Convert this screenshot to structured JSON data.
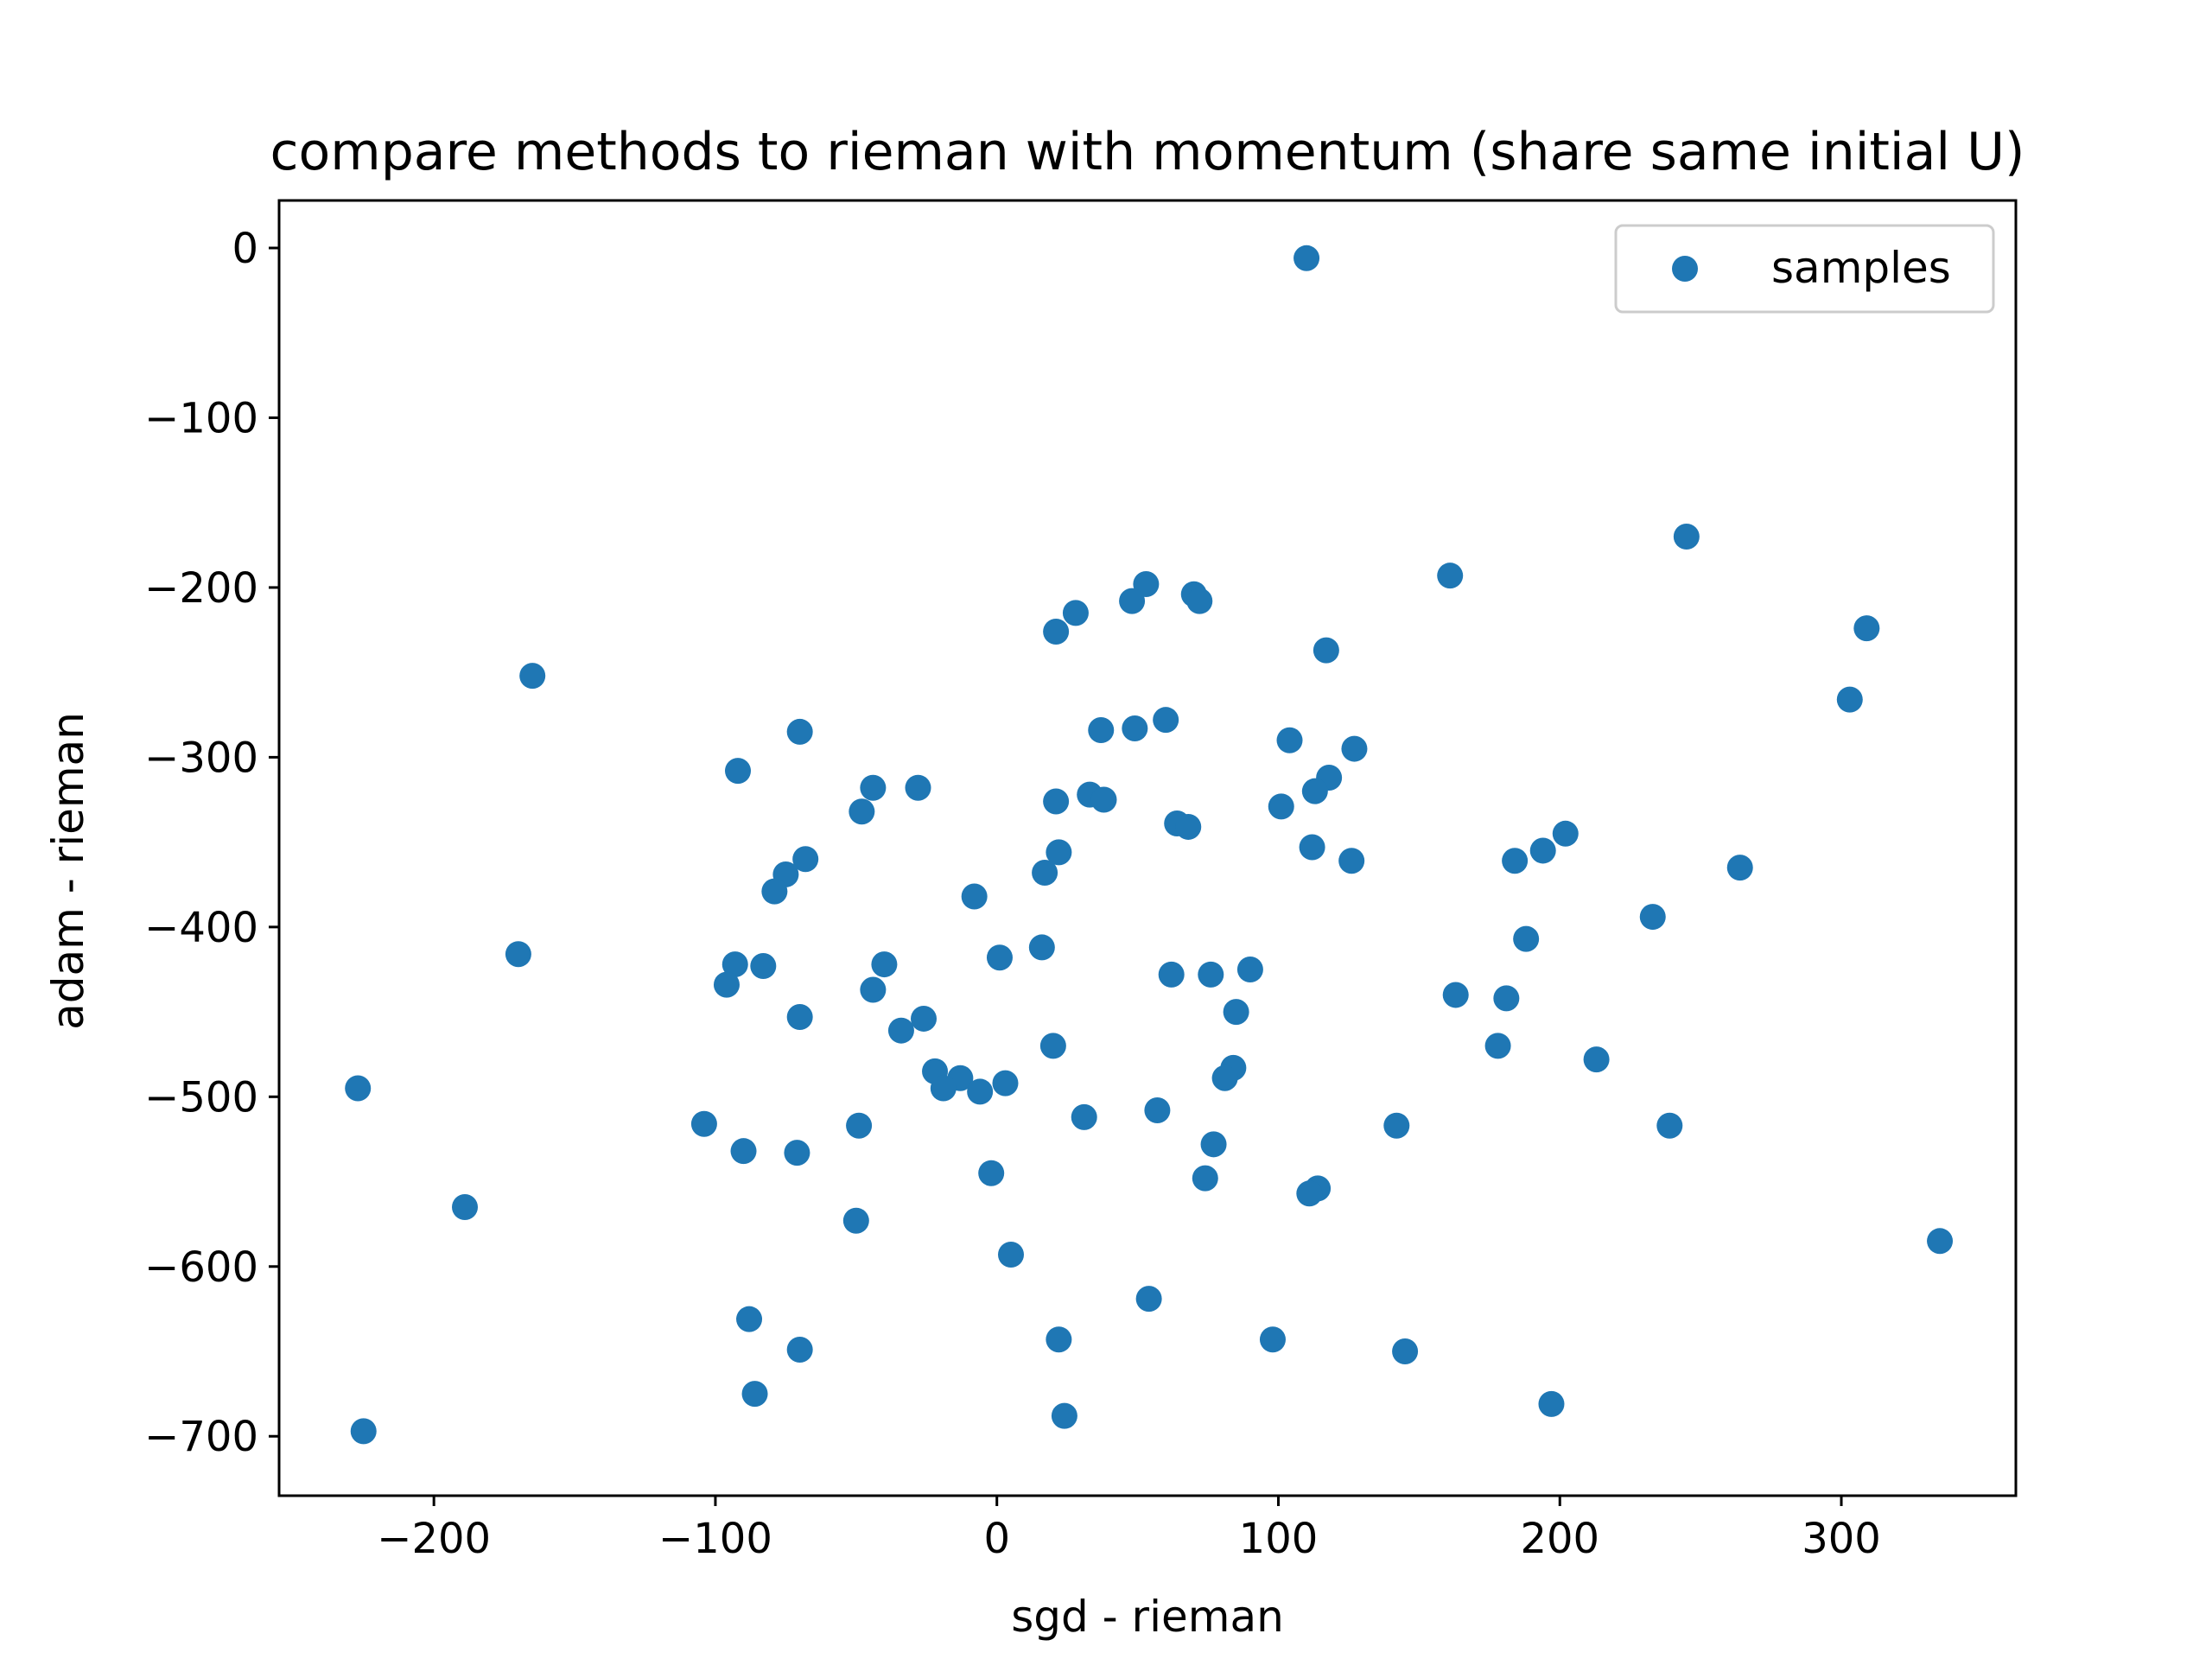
{
  "chart_data": {
    "type": "scatter",
    "title": "compare methods to rieman with momentum (share same initial U)",
    "xlabel": "sgd - rieman",
    "ylabel": "adam - rieman",
    "xlim": [
      -255,
      362
    ],
    "ylim": [
      -735,
      28
    ],
    "xticks": [
      -200,
      -100,
      0,
      100,
      200,
      300
    ],
    "yticks": [
      0,
      -100,
      -200,
      -300,
      -400,
      -500,
      -600,
      -700
    ],
    "xtick_labels": [
      "−200",
      "−100",
      "0",
      "100",
      "200",
      "300"
    ],
    "ytick_labels": [
      "0",
      "−100",
      "−200",
      "−300",
      "−400",
      "−500",
      "−600",
      "−700"
    ],
    "grid": false,
    "legend_position": "top-right",
    "color": "#1f77b4",
    "series": [
      {
        "name": "samples",
        "points": [
          [
            110,
            -6
          ],
          [
            245,
            -170
          ],
          [
            161,
            -193
          ],
          [
            309,
            -224
          ],
          [
            303,
            -266
          ],
          [
            -165,
            -252
          ],
          [
            53,
            -198
          ],
          [
            70,
            -204
          ],
          [
            72,
            -208
          ],
          [
            48,
            -208
          ],
          [
            28,
            -215
          ],
          [
            21,
            -226
          ],
          [
            117,
            -237
          ],
          [
            -70,
            -285
          ],
          [
            37,
            -284
          ],
          [
            49,
            -283
          ],
          [
            60,
            -278
          ],
          [
            104,
            -290
          ],
          [
            127,
            -295
          ],
          [
            -92,
            -308
          ],
          [
            -44,
            -318
          ],
          [
            -28,
            -318
          ],
          [
            33,
            -322
          ],
          [
            38,
            -325
          ],
          [
            21,
            -326
          ],
          [
            -48,
            -332
          ],
          [
            118,
            -312
          ],
          [
            113,
            -320
          ],
          [
            101,
            -329
          ],
          [
            64,
            -339
          ],
          [
            68,
            -341
          ],
          [
            202,
            -345
          ],
          [
            194,
            -355
          ],
          [
            22,
            -356
          ],
          [
            112,
            -353
          ],
          [
            -68,
            -360
          ],
          [
            -75,
            -369
          ],
          [
            -79,
            -379
          ],
          [
            184,
            -361
          ],
          [
            126,
            -361
          ],
          [
            264,
            -365
          ],
          [
            17,
            -368
          ],
          [
            -8,
            -382
          ],
          [
            233,
            -394
          ],
          [
            -170,
            -416
          ],
          [
            16,
            -412
          ],
          [
            1,
            -418
          ],
          [
            188,
            -407
          ],
          [
            -40,
            -422
          ],
          [
            -93,
            -422
          ],
          [
            -83,
            -423
          ],
          [
            -96,
            -434
          ],
          [
            -44,
            -437
          ],
          [
            62,
            -428
          ],
          [
            76,
            -428
          ],
          [
            90,
            -425
          ],
          [
            163,
            -440
          ],
          [
            181,
            -442
          ],
          [
            -70,
            -453
          ],
          [
            -26,
            -454
          ],
          [
            -34,
            -461
          ],
          [
            85,
            -450
          ],
          [
            178,
            -470
          ],
          [
            20,
            -470
          ],
          [
            -227,
            -495
          ],
          [
            -22,
            -485
          ],
          [
            -13,
            -489
          ],
          [
            -19,
            -495
          ],
          [
            -6,
            -497
          ],
          [
            3,
            -492
          ],
          [
            84,
            -483
          ],
          [
            81,
            -489
          ],
          [
            213,
            -478
          ],
          [
            57,
            -508
          ],
          [
            -104,
            -516
          ],
          [
            -49,
            -517
          ],
          [
            31,
            -512
          ],
          [
            142,
            -517
          ],
          [
            239,
            -517
          ],
          [
            -90,
            -532
          ],
          [
            -71,
            -533
          ],
          [
            77,
            -528
          ],
          [
            -2,
            -545
          ],
          [
            74,
            -548
          ],
          [
            114,
            -554
          ],
          [
            111,
            -557
          ],
          [
            -189,
            -565
          ],
          [
            -50,
            -573
          ],
          [
            335,
            -585
          ],
          [
            5,
            -593
          ],
          [
            54,
            -619
          ],
          [
            -88,
            -631
          ],
          [
            22,
            -643
          ],
          [
            98,
            -643
          ],
          [
            -70,
            -649
          ],
          [
            145,
            -650
          ],
          [
            -86,
            -675
          ],
          [
            24,
            -688
          ],
          [
            197,
            -681
          ],
          [
            -225,
            -697
          ]
        ]
      }
    ]
  }
}
